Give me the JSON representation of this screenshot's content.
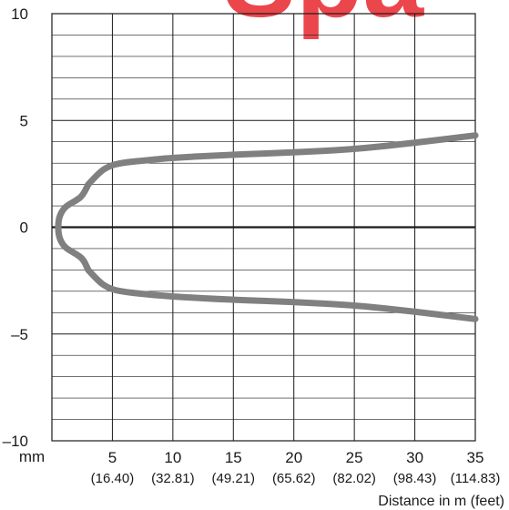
{
  "watermark": {
    "text": "Spa",
    "color": "#e8262d"
  },
  "colors": {
    "curve": "#808080",
    "grid": "#1a1a1a",
    "axis_zero": "#1a1a1a",
    "text": "#1a1a1a"
  },
  "chart_data": {
    "type": "line",
    "title": "",
    "xlabel": "Distance in m (feet)",
    "ylabel": "mm",
    "xlim": [
      0,
      35
    ],
    "ylim": [
      -10,
      10
    ],
    "grid": true,
    "x_ticks": [
      {
        "value": 5,
        "label": "5",
        "sub": "(16.40)"
      },
      {
        "value": 10,
        "label": "10",
        "sub": "(32.81)"
      },
      {
        "value": 15,
        "label": "15",
        "sub": "(49.21)"
      },
      {
        "value": 20,
        "label": "20",
        "sub": "(65.62)"
      },
      {
        "value": 25,
        "label": "25",
        "sub": "(82.02)"
      },
      {
        "value": 30,
        "label": "30",
        "sub": "(98.43)"
      },
      {
        "value": 35,
        "label": "35",
        "sub": "(114.83)"
      }
    ],
    "y_ticks": [
      {
        "value": 10,
        "label": "10"
      },
      {
        "value": 5,
        "label": "5"
      },
      {
        "value": 0,
        "label": "0"
      },
      {
        "value": -5,
        "label": "–5"
      },
      {
        "value": -10,
        "label": "–10"
      }
    ],
    "series": [
      {
        "x": [
          3.0,
          3.8,
          4.5,
          5.5,
          8,
          10,
          15,
          20,
          25,
          30,
          35
        ],
        "y": [
          2.0,
          2.5,
          2.8,
          3.0,
          3.15,
          3.25,
          3.4,
          3.5,
          3.65,
          3.95,
          4.3
        ]
      },
      {
        "x": [
          3.0,
          3.8,
          4.5,
          5.5,
          8,
          10,
          15,
          20,
          25,
          30,
          35
        ],
        "y": [
          -2.0,
          -2.5,
          -2.8,
          -3.0,
          -3.15,
          -3.25,
          -3.4,
          -3.5,
          -3.65,
          -3.95,
          -4.3
        ]
      },
      {
        "x": [
          3.0,
          2.6,
          2.0,
          1.5,
          1.0,
          0.6,
          0.5,
          0.6,
          1.0,
          1.5,
          2.0,
          2.6,
          3.0
        ],
        "y": [
          2.0,
          1.5,
          1.25,
          1.1,
          0.9,
          0.5,
          0.0,
          -0.5,
          -0.9,
          -1.1,
          -1.25,
          -1.5,
          -2.0
        ]
      }
    ]
  }
}
